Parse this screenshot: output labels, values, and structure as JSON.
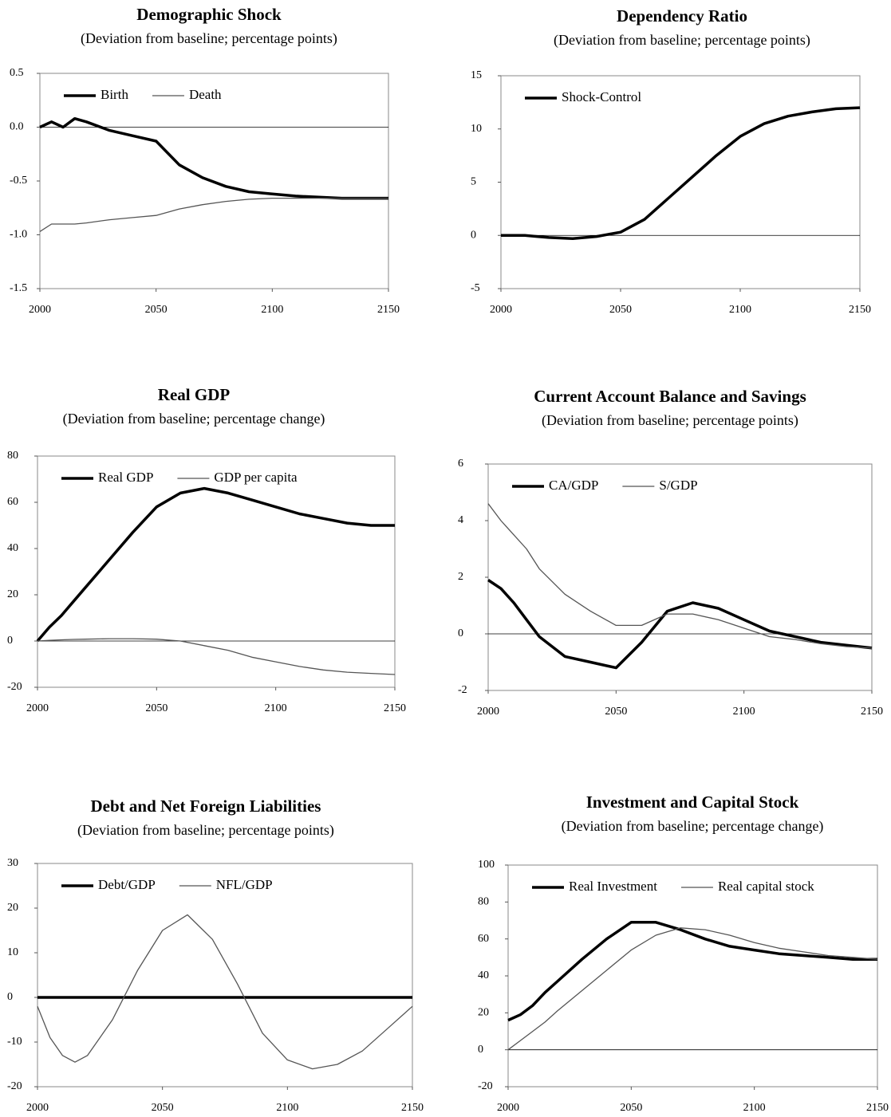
{
  "chart_data": [
    {
      "type": "line",
      "title": "Demographic Shock",
      "subtitle": "(Deviation from baseline; percentage points)",
      "x": [
        2000,
        2005,
        2010,
        2015,
        2020,
        2030,
        2040,
        2050,
        2060,
        2070,
        2080,
        2090,
        2100,
        2110,
        2120,
        2130,
        2140,
        2150
      ],
      "xlim": [
        2000,
        2150
      ],
      "xticks": [
        2000,
        2050,
        2100,
        2150
      ],
      "ylim": [
        -1.5,
        0.5
      ],
      "yticks": [
        0.5,
        {
          "value": 0,
          "label": "0.0"
        },
        -0.5,
        {
          "value": -1,
          "label": "-1.0"
        },
        -1.5
      ],
      "legend": "upper left",
      "series": [
        {
          "name": "Birth",
          "color": "#000000",
          "values": [
            0,
            0.05,
            0,
            0.08,
            0.05,
            -0.03,
            -0.08,
            -0.13,
            -0.35,
            -0.47,
            -0.55,
            -0.6,
            -0.62,
            -0.64,
            -0.65,
            -0.66,
            -0.66,
            -0.66
          ]
        },
        {
          "name": "Death",
          "color": "#555555",
          "values": [
            -0.97,
            -0.9,
            -0.9,
            -0.9,
            -0.89,
            -0.86,
            -0.84,
            -0.82,
            -0.76,
            -0.72,
            -0.69,
            -0.67,
            -0.66,
            -0.66,
            -0.66,
            -0.66,
            -0.66,
            -0.66
          ]
        }
      ]
    },
    {
      "type": "line",
      "title": "Dependency Ratio",
      "subtitle": "(Deviation from baseline; percentage points)",
      "x": [
        2000,
        2005,
        2010,
        2015,
        2020,
        2030,
        2040,
        2050,
        2060,
        2070,
        2080,
        2090,
        2100,
        2110,
        2120,
        2130,
        2140,
        2150
      ],
      "xlim": [
        2000,
        2150
      ],
      "xticks": [
        2000,
        2050,
        2100,
        2150
      ],
      "ylim": [
        -5,
        15
      ],
      "yticks": [
        -5,
        0,
        5,
        10,
        15
      ],
      "legend": "upper left",
      "series": [
        {
          "name": "Shock-Control",
          "color": "#000000",
          "values": [
            0,
            0,
            0,
            -0.1,
            -0.2,
            -0.3,
            -0.1,
            0.3,
            1.5,
            3.5,
            5.5,
            7.5,
            9.3,
            10.5,
            11.2,
            11.6,
            11.9,
            12
          ]
        }
      ]
    },
    {
      "type": "line",
      "title": "Real GDP",
      "subtitle": "(Deviation from baseline; percentage change)",
      "x": [
        2000,
        2005,
        2010,
        2015,
        2020,
        2030,
        2040,
        2050,
        2060,
        2070,
        2080,
        2090,
        2100,
        2110,
        2120,
        2130,
        2140,
        2150
      ],
      "xlim": [
        2000,
        2150
      ],
      "xticks": [
        2000,
        2050,
        2100,
        2150
      ],
      "ylim": [
        -20,
        80
      ],
      "yticks": [
        -20,
        0,
        20,
        40,
        60,
        80
      ],
      "legend": "upper left",
      "series": [
        {
          "name": "Real GDP",
          "color": "#000000",
          "values": [
            0,
            6,
            11,
            17,
            23,
            35,
            47,
            58,
            64,
            66,
            64,
            61,
            58,
            55,
            53,
            51,
            50,
            50
          ]
        },
        {
          "name": "GDP per capita",
          "color": "#555555",
          "values": [
            0,
            0.3,
            0.5,
            0.7,
            0.8,
            1,
            1,
            0.8,
            0,
            -2,
            -4,
            -7,
            -9,
            -11,
            -12.5,
            -13.5,
            -14,
            -14.5
          ]
        }
      ]
    },
    {
      "type": "line",
      "title": "Current Account Balance and Savings",
      "subtitle": "(Deviation from baseline; percentage points)",
      "x": [
        2000,
        2005,
        2010,
        2015,
        2020,
        2030,
        2040,
        2050,
        2060,
        2070,
        2080,
        2090,
        2100,
        2110,
        2120,
        2130,
        2140,
        2150
      ],
      "xlim": [
        2000,
        2150
      ],
      "xticks": [
        2000,
        2050,
        2100,
        2150
      ],
      "ylim": [
        -2,
        6
      ],
      "yticks": [
        -2,
        0,
        2,
        4,
        6
      ],
      "legend": "upper left",
      "series": [
        {
          "name": "CA/GDP",
          "color": "#000000",
          "values": [
            1.9,
            1.6,
            1.1,
            0.5,
            -0.1,
            -0.8,
            -1,
            -1.2,
            -0.3,
            0.8,
            1.1,
            0.9,
            0.5,
            0.1,
            -0.1,
            -0.3,
            -0.4,
            -0.5
          ]
        },
        {
          "name": "S/GDP",
          "color": "#555555",
          "values": [
            4.6,
            4,
            3.5,
            3,
            2.3,
            1.4,
            0.8,
            0.3,
            0.3,
            0.7,
            0.7,
            0.5,
            0.2,
            -0.1,
            -0.2,
            -0.35,
            -0.45,
            -0.5
          ]
        }
      ]
    },
    {
      "type": "line",
      "title": "Debt and Net Foreign Liabilities",
      "subtitle": "(Deviation from baseline; percentage points)",
      "x": [
        2000,
        2005,
        2010,
        2015,
        2020,
        2030,
        2040,
        2050,
        2060,
        2070,
        2080,
        2090,
        2100,
        2110,
        2120,
        2130,
        2140,
        2150
      ],
      "xlim": [
        2000,
        2150
      ],
      "xticks": [
        2000,
        2050,
        2100,
        2150
      ],
      "ylim": [
        -20,
        30
      ],
      "yticks": [
        -20,
        -10,
        0,
        10,
        20,
        30
      ],
      "legend": "upper left",
      "series": [
        {
          "name": "Debt/GDP",
          "color": "#000000",
          "values": [
            0,
            0,
            0,
            0,
            0,
            0,
            0,
            0,
            0,
            0,
            0,
            0,
            0,
            0,
            0,
            0,
            0,
            0
          ]
        },
        {
          "name": "NFL/GDP",
          "color": "#555555",
          "values": [
            -2,
            -9,
            -13,
            -14.5,
            -13,
            -5,
            6,
            15,
            18.5,
            13,
            3,
            -8,
            -14,
            -16,
            -15,
            -12,
            -7,
            -2
          ]
        }
      ]
    },
    {
      "type": "line",
      "title": "Investment and Capital Stock",
      "subtitle": "(Deviation from baseline; percentage change)",
      "x": [
        2000,
        2005,
        2010,
        2015,
        2020,
        2030,
        2040,
        2050,
        2060,
        2070,
        2080,
        2090,
        2100,
        2110,
        2120,
        2130,
        2140,
        2150
      ],
      "xlim": [
        2000,
        2150
      ],
      "xticks": [
        2000,
        2050,
        2100,
        2150
      ],
      "ylim": [
        -20,
        100
      ],
      "yticks": [
        -20,
        0,
        20,
        40,
        60,
        80,
        100
      ],
      "legend": "upper left",
      "series": [
        {
          "name": "Real Investment",
          "color": "#000000",
          "values": [
            16,
            19,
            24,
            31,
            37,
            49,
            60,
            69,
            69,
            65,
            60,
            56,
            54,
            52,
            51,
            50,
            49,
            49
          ]
        },
        {
          "name": "Real capital stock",
          "color": "#555555",
          "values": [
            0,
            5,
            10,
            15,
            21,
            32,
            43,
            54,
            62,
            66,
            65,
            62,
            58,
            55,
            53,
            51,
            50,
            49
          ]
        }
      ]
    }
  ]
}
